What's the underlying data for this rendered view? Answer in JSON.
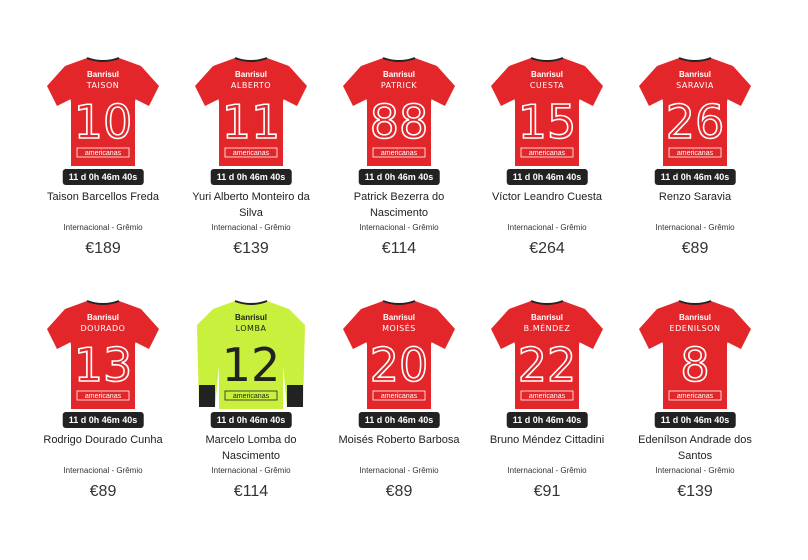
{
  "products": [
    {
      "name": "Taison Barcellos Freda",
      "league": "Internacional - Grêmio",
      "price": "€189",
      "timer": "11 d 0h 46m 40s",
      "shirt_name": "TAISON",
      "number": "10",
      "kit": "home"
    },
    {
      "name": "Yuri Alberto Monteiro da Silva",
      "league": "Internacional - Grêmio",
      "price": "€139",
      "timer": "11 d 0h 46m 40s",
      "shirt_name": "ALBERTO",
      "number": "11",
      "kit": "home"
    },
    {
      "name": "Patrick Bezerra do Nascimento",
      "league": "Internacional - Grêmio",
      "price": "€114",
      "timer": "11 d 0h 46m 40s",
      "shirt_name": "PATRICK",
      "number": "88",
      "kit": "home"
    },
    {
      "name": "Víctor Leandro Cuesta",
      "league": "Internacional - Grêmio",
      "price": "€264",
      "timer": "11 d 0h 46m 40s",
      "shirt_name": "CUESTA",
      "number": "15",
      "kit": "home"
    },
    {
      "name": "Renzo Saravia",
      "league": "Internacional - Grêmio",
      "price": "€89",
      "timer": "11 d 0h 46m 40s",
      "shirt_name": "SARAVIA",
      "number": "26",
      "kit": "home"
    },
    {
      "name": "Rodrigo Dourado Cunha",
      "league": "Internacional - Grêmio",
      "price": "€89",
      "timer": "11 d 0h 46m 40s",
      "shirt_name": "DOURADO",
      "number": "13",
      "kit": "home"
    },
    {
      "name": "Marcelo Lomba do Nascimento",
      "league": "Internacional - Grêmio",
      "price": "€114",
      "timer": "11 d 0h 46m 40s",
      "shirt_name": "LOMBA",
      "number": "12",
      "kit": "goalkeeper"
    },
    {
      "name": "Moisés Roberto Barbosa",
      "league": "Internacional - Grêmio",
      "price": "€89",
      "timer": "11 d 0h 46m 40s",
      "shirt_name": "MOISÉS",
      "number": "20",
      "kit": "home"
    },
    {
      "name": "Bruno Méndez Cittadini",
      "league": "Internacional - Grêmio",
      "price": "€91",
      "timer": "11 d 0h 46m 40s",
      "shirt_name": "B.MÉNDEZ",
      "number": "22",
      "kit": "home"
    },
    {
      "name": "Edenílson Andrade dos Santos",
      "league": "Internacional - Grêmio",
      "price": "€139",
      "timer": "11 d 0h 46m 40s",
      "shirt_name": "EDENILSON",
      "number": "8",
      "kit": "home"
    }
  ],
  "sponsor_top": "Banrisul",
  "sponsor_bottom": "americanas",
  "colors": {
    "home": "#e3262a",
    "goalkeeper": "#c8f03c",
    "timer_bg": "#222222"
  }
}
